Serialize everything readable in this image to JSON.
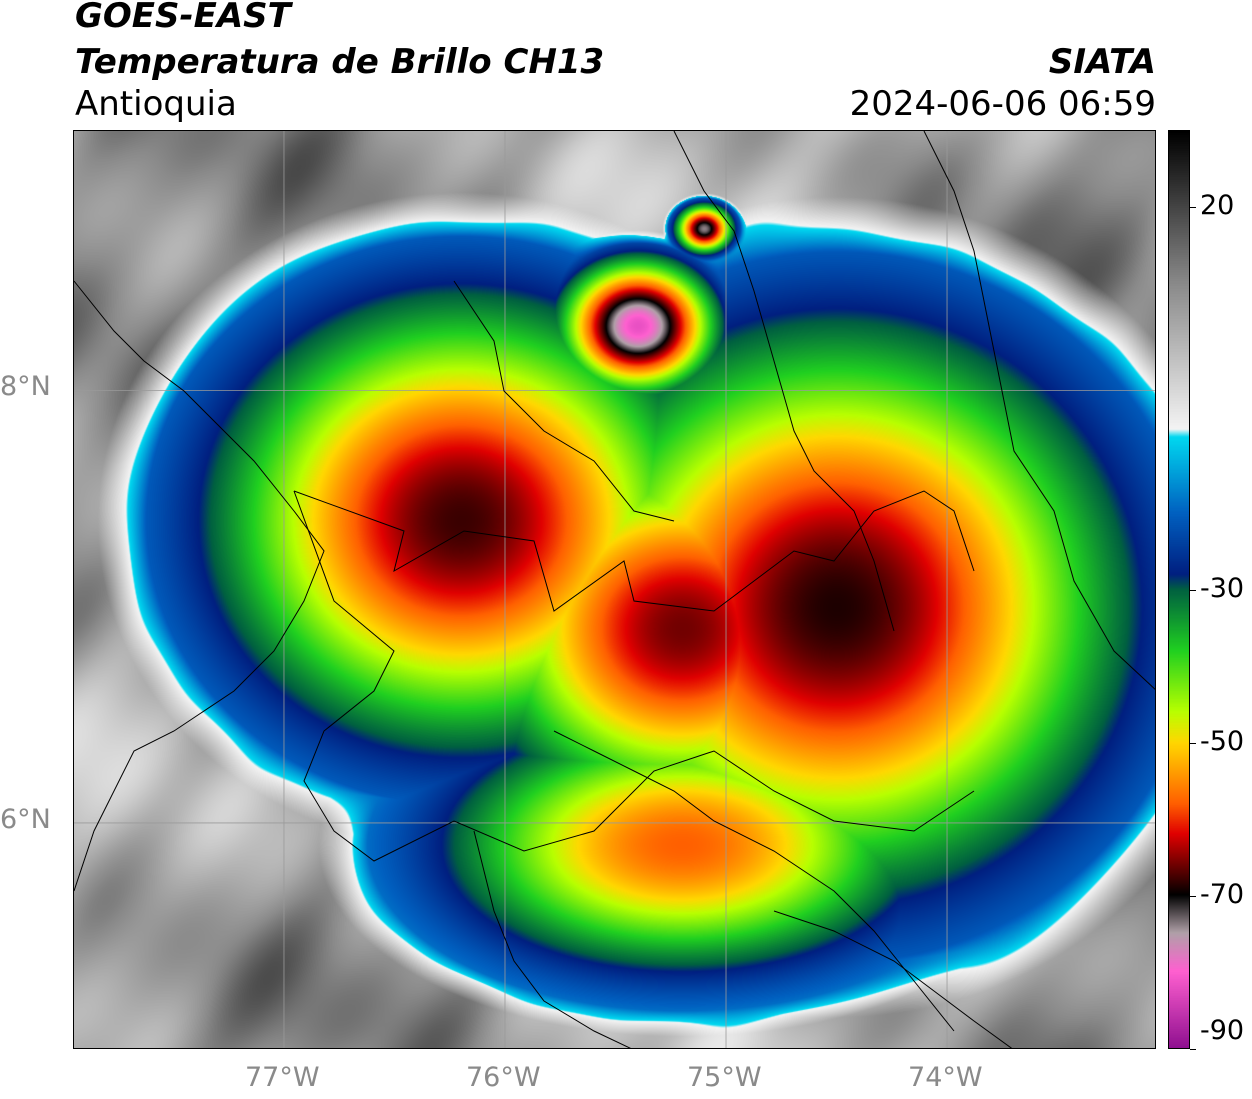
{
  "header": {
    "satellite": "GOES-EAST",
    "product": "Temperatura de Brillo CH13",
    "region": "Antioquia",
    "organization": "SIATA",
    "timestamp": "2024-06-06 06:59"
  },
  "axes": {
    "latitude_ticks": [
      {
        "label": "8°N",
        "value": 8
      },
      {
        "label": "6°N",
        "value": 6
      }
    ],
    "longitude_ticks": [
      {
        "label": "77°W",
        "value": -77
      },
      {
        "label": "76°W",
        "value": -76
      },
      {
        "label": "75°W",
        "value": -75
      },
      {
        "label": "74°W",
        "value": -74
      }
    ],
    "lon_range": [
      -77.95,
      -73.05
    ],
    "lat_range": [
      4.95,
      9.2
    ],
    "gridlines": true
  },
  "colorbar": {
    "range": [
      -90,
      30
    ],
    "ticks": [
      {
        "label": "20",
        "value": 20
      },
      {
        "label": "-30",
        "value": -30
      },
      {
        "label": "-50",
        "value": -50
      },
      {
        "label": "-70",
        "value": -70
      },
      {
        "label": "-90",
        "value": -90
      }
    ],
    "stops": [
      {
        "value": 30,
        "color": "#000000"
      },
      {
        "value": 10,
        "color": "#8a8a8a"
      },
      {
        "value": -9,
        "color": "#f4f4f4"
      },
      {
        "value": -10,
        "color": "#00d8f0"
      },
      {
        "value": -20,
        "color": "#0060c0"
      },
      {
        "value": -28,
        "color": "#001f80"
      },
      {
        "value": -30,
        "color": "#006040"
      },
      {
        "value": -38,
        "color": "#20d020"
      },
      {
        "value": -46,
        "color": "#b8ff00"
      },
      {
        "value": -50,
        "color": "#ffd800"
      },
      {
        "value": -58,
        "color": "#ff6000"
      },
      {
        "value": -62,
        "color": "#e00000"
      },
      {
        "value": -68,
        "color": "#3a0000"
      },
      {
        "value": -70,
        "color": "#000000"
      },
      {
        "value": -75,
        "color": "#b0a0a8"
      },
      {
        "value": -80,
        "color": "#ff60d0"
      },
      {
        "value": -90,
        "color": "#901090"
      }
    ]
  },
  "storm_cells": [
    {
      "name": "main-west",
      "lon": -76.2,
      "lat": 7.4,
      "rx": 1.3,
      "ry": 1.2,
      "peak": -68
    },
    {
      "name": "main-east",
      "lon": -74.5,
      "lat": 7.0,
      "rx": 1.5,
      "ry": 1.5,
      "peak": -69
    },
    {
      "name": "main-center",
      "lon": -75.2,
      "lat": 6.9,
      "rx": 1.1,
      "ry": 1.0,
      "peak": -66
    },
    {
      "name": "south",
      "lon": -75.2,
      "lat": 5.9,
      "rx": 1.3,
      "ry": 0.7,
      "peak": -58
    },
    {
      "name": "north-overshoot",
      "lon": -75.4,
      "lat": 8.3,
      "rx": 0.4,
      "ry": 0.35,
      "peak": -82
    },
    {
      "name": "north-small",
      "lon": -75.1,
      "lat": 8.75,
      "rx": 0.15,
      "ry": 0.13,
      "peak": -74
    }
  ]
}
